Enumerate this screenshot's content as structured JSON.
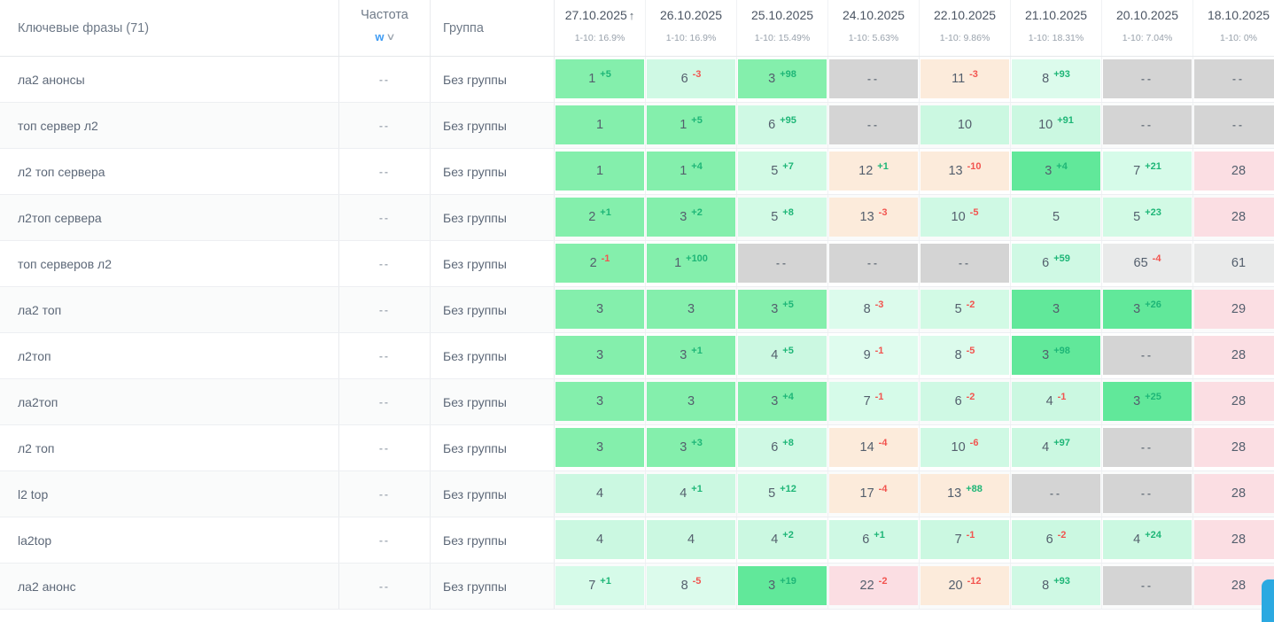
{
  "table": {
    "keyword_header": "Ключевые фразы (71)",
    "frequency_header": "Частота",
    "frequency_filter": "w",
    "group_header": "Группа",
    "date_columns": [
      {
        "date": "27.10.2025",
        "sorted": true,
        "sub": "1-10: 16.9%"
      },
      {
        "date": "26.10.2025",
        "sorted": false,
        "sub": "1-10: 16.9%"
      },
      {
        "date": "25.10.2025",
        "sorted": false,
        "sub": "1-10: 15.49%"
      },
      {
        "date": "24.10.2025",
        "sorted": false,
        "sub": "1-10: 5.63%"
      },
      {
        "date": "22.10.2025",
        "sorted": false,
        "sub": "1-10: 9.86%"
      },
      {
        "date": "21.10.2025",
        "sorted": false,
        "sub": "1-10: 18.31%"
      },
      {
        "date": "20.10.2025",
        "sorted": false,
        "sub": "1-10: 7.04%"
      },
      {
        "date": "18.10.2025",
        "sorted": false,
        "sub": "1-10: 0%"
      }
    ],
    "rows": [
      {
        "keyword": "ла2 анонсы",
        "frequency": "--",
        "group": "Без группы",
        "cells": [
          {
            "pos": "1",
            "change": "+5",
            "bg": "#84EFAC"
          },
          {
            "pos": "6",
            "change": "-3",
            "bg": "#CFF9E4"
          },
          {
            "pos": "3",
            "change": "+98",
            "bg": "#84EFAC"
          },
          {
            "pos": "--",
            "change": "",
            "bg": "#D4D4D4"
          },
          {
            "pos": "11",
            "change": "-3",
            "bg": "#FCEBDB"
          },
          {
            "pos": "8",
            "change": "+93",
            "bg": "#DCFBEC"
          },
          {
            "pos": "--",
            "change": "",
            "bg": "#D4D4D4"
          },
          {
            "pos": "--",
            "change": "",
            "bg": "#D4D4D4"
          }
        ]
      },
      {
        "keyword": "топ сервер л2",
        "frequency": "--",
        "group": "Без группы",
        "cells": [
          {
            "pos": "1",
            "change": "",
            "bg": "#84EFAC"
          },
          {
            "pos": "1",
            "change": "+5",
            "bg": "#84EFAC"
          },
          {
            "pos": "6",
            "change": "+95",
            "bg": "#CFF9E4"
          },
          {
            "pos": "--",
            "change": "",
            "bg": "#D4D4D4"
          },
          {
            "pos": "10",
            "change": "",
            "bg": "#CBF8E1"
          },
          {
            "pos": "10",
            "change": "+91",
            "bg": "#CBF8E1"
          },
          {
            "pos": "--",
            "change": "",
            "bg": "#D4D4D4"
          },
          {
            "pos": "--",
            "change": "",
            "bg": "#D4D4D4"
          }
        ]
      },
      {
        "keyword": "л2 топ сервера",
        "frequency": "--",
        "group": "Без группы",
        "cells": [
          {
            "pos": "1",
            "change": "",
            "bg": "#84EFAC"
          },
          {
            "pos": "1",
            "change": "+4",
            "bg": "#84EFAC"
          },
          {
            "pos": "5",
            "change": "+7",
            "bg": "#D2FAE5"
          },
          {
            "pos": "12",
            "change": "+1",
            "bg": "#FCEBDB"
          },
          {
            "pos": "13",
            "change": "-10",
            "bg": "#FCEBDB"
          },
          {
            "pos": "3",
            "change": "+4",
            "bg": "#61E89A"
          },
          {
            "pos": "7",
            "change": "+21",
            "bg": "#D6FBE9"
          },
          {
            "pos": "28",
            "change": "",
            "bg": "#FBDEE3"
          }
        ]
      },
      {
        "keyword": "л2топ сервера",
        "frequency": "--",
        "group": "Без группы",
        "cells": [
          {
            "pos": "2",
            "change": "+1",
            "bg": "#84EFAC"
          },
          {
            "pos": "3",
            "change": "+2",
            "bg": "#84EFAC"
          },
          {
            "pos": "5",
            "change": "+8",
            "bg": "#D2FAE5"
          },
          {
            "pos": "13",
            "change": "-3",
            "bg": "#FCEBDB"
          },
          {
            "pos": "10",
            "change": "-5",
            "bg": "#CFF9E4"
          },
          {
            "pos": "5",
            "change": "",
            "bg": "#D2FAE5"
          },
          {
            "pos": "5",
            "change": "+23",
            "bg": "#D2FAE5"
          },
          {
            "pos": "28",
            "change": "",
            "bg": "#FBDEE3"
          }
        ]
      },
      {
        "keyword": "топ серверов л2",
        "frequency": "--",
        "group": "Без группы",
        "cells": [
          {
            "pos": "2",
            "change": "-1",
            "bg": "#84EFAC"
          },
          {
            "pos": "1",
            "change": "+100",
            "bg": "#84EFAC"
          },
          {
            "pos": "--",
            "change": "",
            "bg": "#D4D4D4"
          },
          {
            "pos": "--",
            "change": "",
            "bg": "#D4D4D4"
          },
          {
            "pos": "--",
            "change": "",
            "bg": "#D4D4D4"
          },
          {
            "pos": "6",
            "change": "+59",
            "bg": "#CFF9E4"
          },
          {
            "pos": "65",
            "change": "-4",
            "bg": "#E9EAEA"
          },
          {
            "pos": "61",
            "change": "",
            "bg": "#E9EAEA"
          }
        ]
      },
      {
        "keyword": "ла2 топ",
        "frequency": "--",
        "group": "Без группы",
        "cells": [
          {
            "pos": "3",
            "change": "",
            "bg": "#84EFAC"
          },
          {
            "pos": "3",
            "change": "",
            "bg": "#84EFAC"
          },
          {
            "pos": "3",
            "change": "+5",
            "bg": "#84EFAC"
          },
          {
            "pos": "8",
            "change": "-3",
            "bg": "#DCFBEC"
          },
          {
            "pos": "5",
            "change": "-2",
            "bg": "#D2FAE5"
          },
          {
            "pos": "3",
            "change": "",
            "bg": "#61E89A"
          },
          {
            "pos": "3",
            "change": "+26",
            "bg": "#61E89A"
          },
          {
            "pos": "29",
            "change": "",
            "bg": "#FBDEE3"
          }
        ]
      },
      {
        "keyword": "л2топ",
        "frequency": "--",
        "group": "Без группы",
        "cells": [
          {
            "pos": "3",
            "change": "",
            "bg": "#84EFAC"
          },
          {
            "pos": "3",
            "change": "+1",
            "bg": "#84EFAC"
          },
          {
            "pos": "4",
            "change": "+5",
            "bg": "#CBF8E1"
          },
          {
            "pos": "9",
            "change": "-1",
            "bg": "#DFFCEE"
          },
          {
            "pos": "8",
            "change": "-5",
            "bg": "#DCFBEC"
          },
          {
            "pos": "3",
            "change": "+98",
            "bg": "#61E89A"
          },
          {
            "pos": "--",
            "change": "",
            "bg": "#D4D4D4"
          },
          {
            "pos": "28",
            "change": "",
            "bg": "#FBDEE3"
          }
        ]
      },
      {
        "keyword": "ла2топ",
        "frequency": "--",
        "group": "Без группы",
        "cells": [
          {
            "pos": "3",
            "change": "",
            "bg": "#84EFAC"
          },
          {
            "pos": "3",
            "change": "",
            "bg": "#84EFAC"
          },
          {
            "pos": "3",
            "change": "+4",
            "bg": "#84EFAC"
          },
          {
            "pos": "7",
            "change": "-1",
            "bg": "#D6FBE9"
          },
          {
            "pos": "6",
            "change": "-2",
            "bg": "#CFF9E4"
          },
          {
            "pos": "4",
            "change": "-1",
            "bg": "#CBF8E1"
          },
          {
            "pos": "3",
            "change": "+25",
            "bg": "#61E89A"
          },
          {
            "pos": "28",
            "change": "",
            "bg": "#FBDEE3"
          }
        ]
      },
      {
        "keyword": "л2 топ",
        "frequency": "--",
        "group": "Без группы",
        "cells": [
          {
            "pos": "3",
            "change": "",
            "bg": "#84EFAC"
          },
          {
            "pos": "3",
            "change": "+3",
            "bg": "#84EFAC"
          },
          {
            "pos": "6",
            "change": "+8",
            "bg": "#CFF9E4"
          },
          {
            "pos": "14",
            "change": "-4",
            "bg": "#FCEBDB"
          },
          {
            "pos": "10",
            "change": "-6",
            "bg": "#CFF9E4"
          },
          {
            "pos": "4",
            "change": "+97",
            "bg": "#CBF8E1"
          },
          {
            "pos": "--",
            "change": "",
            "bg": "#D4D4D4"
          },
          {
            "pos": "28",
            "change": "",
            "bg": "#FBDEE3"
          }
        ]
      },
      {
        "keyword": "l2 top",
        "frequency": "--",
        "group": "Без группы",
        "cells": [
          {
            "pos": "4",
            "change": "",
            "bg": "#CBF8E1"
          },
          {
            "pos": "4",
            "change": "+1",
            "bg": "#CBF8E1"
          },
          {
            "pos": "5",
            "change": "+12",
            "bg": "#D2FAE5"
          },
          {
            "pos": "17",
            "change": "-4",
            "bg": "#FCEBDB"
          },
          {
            "pos": "13",
            "change": "+88",
            "bg": "#FCEBDB"
          },
          {
            "pos": "--",
            "change": "",
            "bg": "#D4D4D4"
          },
          {
            "pos": "--",
            "change": "",
            "bg": "#D4D4D4"
          },
          {
            "pos": "28",
            "change": "",
            "bg": "#FBDEE3"
          }
        ]
      },
      {
        "keyword": "la2top",
        "frequency": "--",
        "group": "Без группы",
        "cells": [
          {
            "pos": "4",
            "change": "",
            "bg": "#CBF8E1"
          },
          {
            "pos": "4",
            "change": "",
            "bg": "#CBF8E1"
          },
          {
            "pos": "4",
            "change": "+2",
            "bg": "#CBF8E1"
          },
          {
            "pos": "6",
            "change": "+1",
            "bg": "#CFF9E4"
          },
          {
            "pos": "7",
            "change": "-1",
            "bg": "#CBF8E1"
          },
          {
            "pos": "6",
            "change": "-2",
            "bg": "#CBF8E1"
          },
          {
            "pos": "4",
            "change": "+24",
            "bg": "#CBF8E1"
          },
          {
            "pos": "28",
            "change": "",
            "bg": "#FBDEE3"
          }
        ]
      },
      {
        "keyword": "ла2 анонс",
        "frequency": "--",
        "group": "Без группы",
        "cells": [
          {
            "pos": "7",
            "change": "+1",
            "bg": "#D6FBE9"
          },
          {
            "pos": "8",
            "change": "-5",
            "bg": "#DCFBEC"
          },
          {
            "pos": "3",
            "change": "+19",
            "bg": "#61E89A"
          },
          {
            "pos": "22",
            "change": "-2",
            "bg": "#FBDEE3"
          },
          {
            "pos": "20",
            "change": "-12",
            "bg": "#FCEBDB"
          },
          {
            "pos": "8",
            "change": "+93",
            "bg": "#CFF9E4"
          },
          {
            "pos": "--",
            "change": "",
            "bg": "#D4D4D4"
          },
          {
            "pos": "28",
            "change": "",
            "bg": "#FBDEE3"
          }
        ]
      }
    ]
  },
  "icons": {
    "sort_ascending": "↑",
    "chevron_down": "∨"
  },
  "colors": {
    "change_positive": "#1EB677",
    "change_negative": "#F2544F",
    "scrollbar_thumb": "#2BA9E1"
  }
}
